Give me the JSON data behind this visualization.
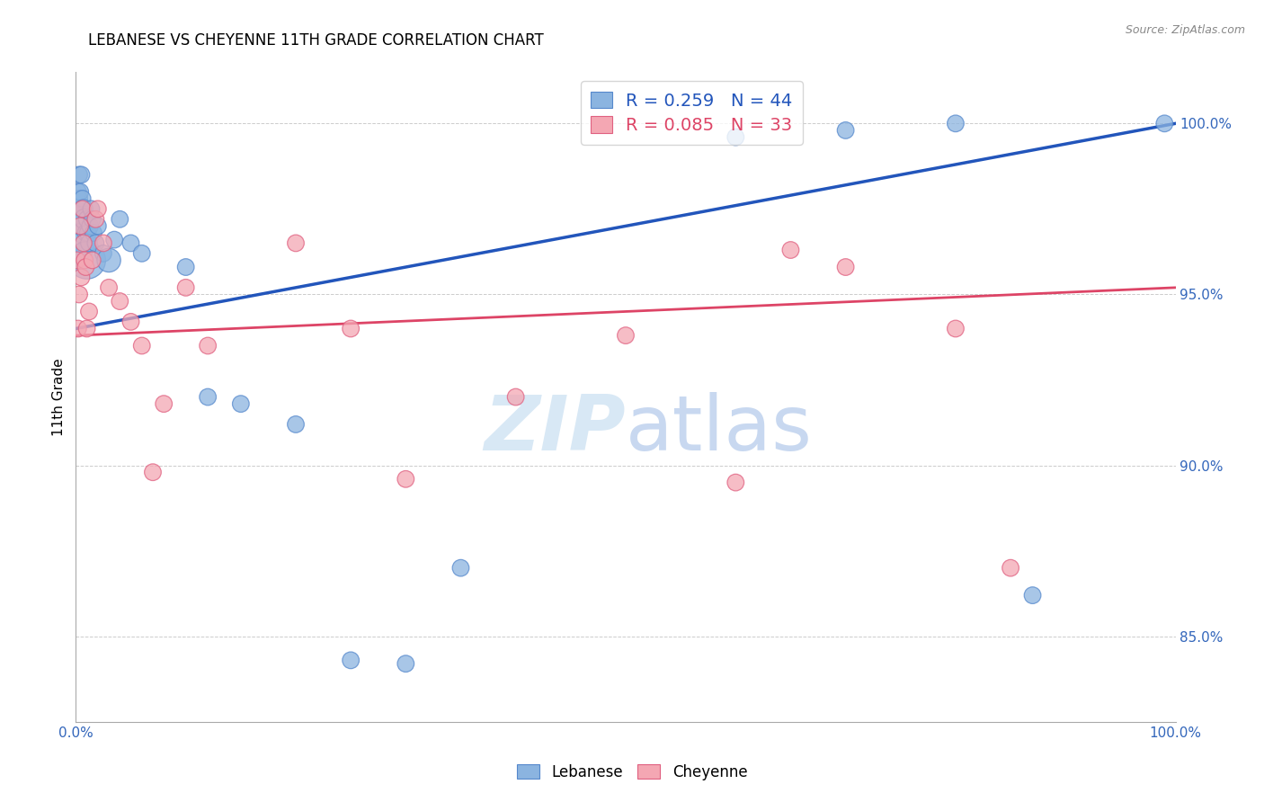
{
  "title": "LEBANESE VS CHEYENNE 11TH GRADE CORRELATION CHART",
  "source": "Source: ZipAtlas.com",
  "ylabel": "11th Grade",
  "ytick_labels": [
    "85.0%",
    "90.0%",
    "95.0%",
    "100.0%"
  ],
  "ytick_values": [
    0.85,
    0.9,
    0.95,
    1.0
  ],
  "xlim": [
    0.0,
    1.0
  ],
  "ylim": [
    0.825,
    1.015
  ],
  "legend_blue_label": "Lebanese",
  "legend_pink_label": "Cheyenne",
  "blue_R": 0.259,
  "blue_N": 44,
  "pink_R": 0.085,
  "pink_N": 33,
  "blue_color": "#8BB4E0",
  "pink_color": "#F4A7B3",
  "blue_edge_color": "#5588CC",
  "pink_edge_color": "#E06080",
  "blue_line_color": "#2255BB",
  "pink_line_color": "#DD4466",
  "watermark_color": "#D8E8F5",
  "blue_line_start_y": 0.94,
  "blue_line_end_y": 1.0,
  "pink_line_start_y": 0.938,
  "pink_line_end_y": 0.952,
  "blue_scatter_x": [
    0.001,
    0.002,
    0.002,
    0.003,
    0.003,
    0.004,
    0.004,
    0.005,
    0.005,
    0.006,
    0.006,
    0.007,
    0.007,
    0.008,
    0.008,
    0.009,
    0.01,
    0.01,
    0.011,
    0.012,
    0.013,
    0.014,
    0.015,
    0.016,
    0.018,
    0.02,
    0.025,
    0.03,
    0.035,
    0.04,
    0.05,
    0.06,
    0.1,
    0.12,
    0.15,
    0.2,
    0.25,
    0.3,
    0.35,
    0.6,
    0.7,
    0.8,
    0.87,
    0.99
  ],
  "blue_scatter_y": [
    0.97,
    0.98,
    0.975,
    0.985,
    0.978,
    0.98,
    0.975,
    0.985,
    0.972,
    0.978,
    0.968,
    0.975,
    0.965,
    0.972,
    0.963,
    0.968,
    0.972,
    0.96,
    0.968,
    0.965,
    0.97,
    0.975,
    0.972,
    0.968,
    0.965,
    0.97,
    0.962,
    0.96,
    0.966,
    0.972,
    0.965,
    0.962,
    0.958,
    0.92,
    0.918,
    0.912,
    0.843,
    0.842,
    0.87,
    0.996,
    0.998,
    1.0,
    0.862,
    1.0
  ],
  "blue_scatter_size": [
    20,
    20,
    20,
    20,
    20,
    20,
    20,
    20,
    20,
    20,
    30,
    25,
    40,
    30,
    20,
    20,
    20,
    100,
    20,
    20,
    20,
    20,
    20,
    20,
    20,
    20,
    20,
    40,
    20,
    20,
    20,
    20,
    20,
    20,
    20,
    20,
    20,
    20,
    20,
    20,
    20,
    20,
    20,
    20
  ],
  "pink_scatter_x": [
    0.001,
    0.002,
    0.003,
    0.004,
    0.005,
    0.006,
    0.007,
    0.008,
    0.009,
    0.01,
    0.012,
    0.015,
    0.018,
    0.02,
    0.025,
    0.03,
    0.04,
    0.05,
    0.06,
    0.07,
    0.08,
    0.1,
    0.12,
    0.2,
    0.25,
    0.3,
    0.4,
    0.5,
    0.6,
    0.65,
    0.7,
    0.8,
    0.85
  ],
  "pink_scatter_y": [
    0.96,
    0.94,
    0.95,
    0.97,
    0.955,
    0.975,
    0.965,
    0.96,
    0.958,
    0.94,
    0.945,
    0.96,
    0.972,
    0.975,
    0.965,
    0.952,
    0.948,
    0.942,
    0.935,
    0.898,
    0.918,
    0.952,
    0.935,
    0.965,
    0.94,
    0.896,
    0.92,
    0.938,
    0.895,
    0.963,
    0.958,
    0.94,
    0.87
  ],
  "pink_scatter_size": [
    20,
    20,
    20,
    20,
    20,
    20,
    20,
    20,
    20,
    20,
    20,
    20,
    20,
    20,
    20,
    20,
    20,
    20,
    20,
    20,
    20,
    20,
    20,
    20,
    20,
    20,
    20,
    20,
    20,
    20,
    20,
    20,
    20
  ]
}
